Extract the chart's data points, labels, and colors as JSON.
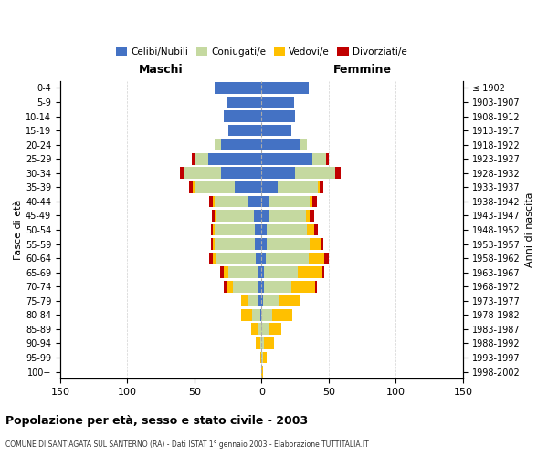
{
  "age_groups": [
    "0-4",
    "5-9",
    "10-14",
    "15-19",
    "20-24",
    "25-29",
    "30-34",
    "35-39",
    "40-44",
    "45-49",
    "50-54",
    "55-59",
    "60-64",
    "65-69",
    "70-74",
    "75-79",
    "80-84",
    "85-89",
    "90-94",
    "95-99",
    "100+"
  ],
  "birth_years": [
    "1998-2002",
    "1993-1997",
    "1988-1992",
    "1983-1987",
    "1978-1982",
    "1973-1977",
    "1968-1972",
    "1963-1967",
    "1958-1962",
    "1953-1957",
    "1948-1952",
    "1943-1947",
    "1938-1942",
    "1933-1937",
    "1928-1932",
    "1923-1927",
    "1918-1922",
    "1913-1917",
    "1908-1912",
    "1903-1907",
    "≤ 1902"
  ],
  "maschi_celibi": [
    35,
    26,
    28,
    25,
    30,
    40,
    30,
    20,
    10,
    6,
    5,
    5,
    4,
    3,
    3,
    2,
    1,
    0,
    0,
    0,
    0
  ],
  "maschi_coniugati": [
    0,
    0,
    0,
    0,
    5,
    10,
    28,
    30,
    25,
    28,
    30,
    30,
    30,
    22,
    18,
    8,
    6,
    3,
    1,
    0,
    0
  ],
  "maschi_vedovi": [
    0,
    0,
    0,
    0,
    0,
    0,
    0,
    1,
    1,
    1,
    1,
    1,
    2,
    3,
    5,
    5,
    8,
    5,
    3,
    1,
    0
  ],
  "maschi_divorziati": [
    0,
    0,
    0,
    0,
    0,
    2,
    3,
    3,
    3,
    2,
    2,
    2,
    3,
    3,
    2,
    0,
    0,
    0,
    0,
    0,
    0
  ],
  "femmine_celibi": [
    35,
    24,
    25,
    22,
    28,
    38,
    25,
    12,
    6,
    5,
    4,
    4,
    3,
    2,
    2,
    1,
    0,
    0,
    0,
    0,
    0
  ],
  "femmine_coniugati": [
    0,
    0,
    0,
    0,
    6,
    10,
    30,
    30,
    30,
    28,
    30,
    32,
    32,
    25,
    20,
    12,
    8,
    5,
    2,
    1,
    0
  ],
  "femmine_vedovi": [
    0,
    0,
    0,
    0,
    0,
    0,
    0,
    1,
    2,
    3,
    5,
    8,
    12,
    18,
    18,
    15,
    15,
    10,
    7,
    3,
    1
  ],
  "femmine_divorziati": [
    0,
    0,
    0,
    0,
    0,
    2,
    4,
    3,
    3,
    3,
    3,
    2,
    3,
    2,
    1,
    0,
    0,
    0,
    0,
    0,
    0
  ],
  "color_celibi": "#4472c4",
  "color_coniugati": "#c5d9a0",
  "color_vedovi": "#ffc000",
  "color_divorziati": "#c00000",
  "title": "Popolazione per età, sesso e stato civile - 2003",
  "subtitle": "COMUNE DI SANT'AGATA SUL SANTERNO (RA) - Dati ISTAT 1° gennaio 2003 - Elaborazione TUTTITALIA.IT",
  "xlabel_left": "Maschi",
  "xlabel_right": "Femmine",
  "ylabel_left": "Fasce di età",
  "ylabel_right": "Anni di nascita",
  "xlim": 150,
  "background_color": "#ffffff",
  "grid_color": "#cccccc"
}
